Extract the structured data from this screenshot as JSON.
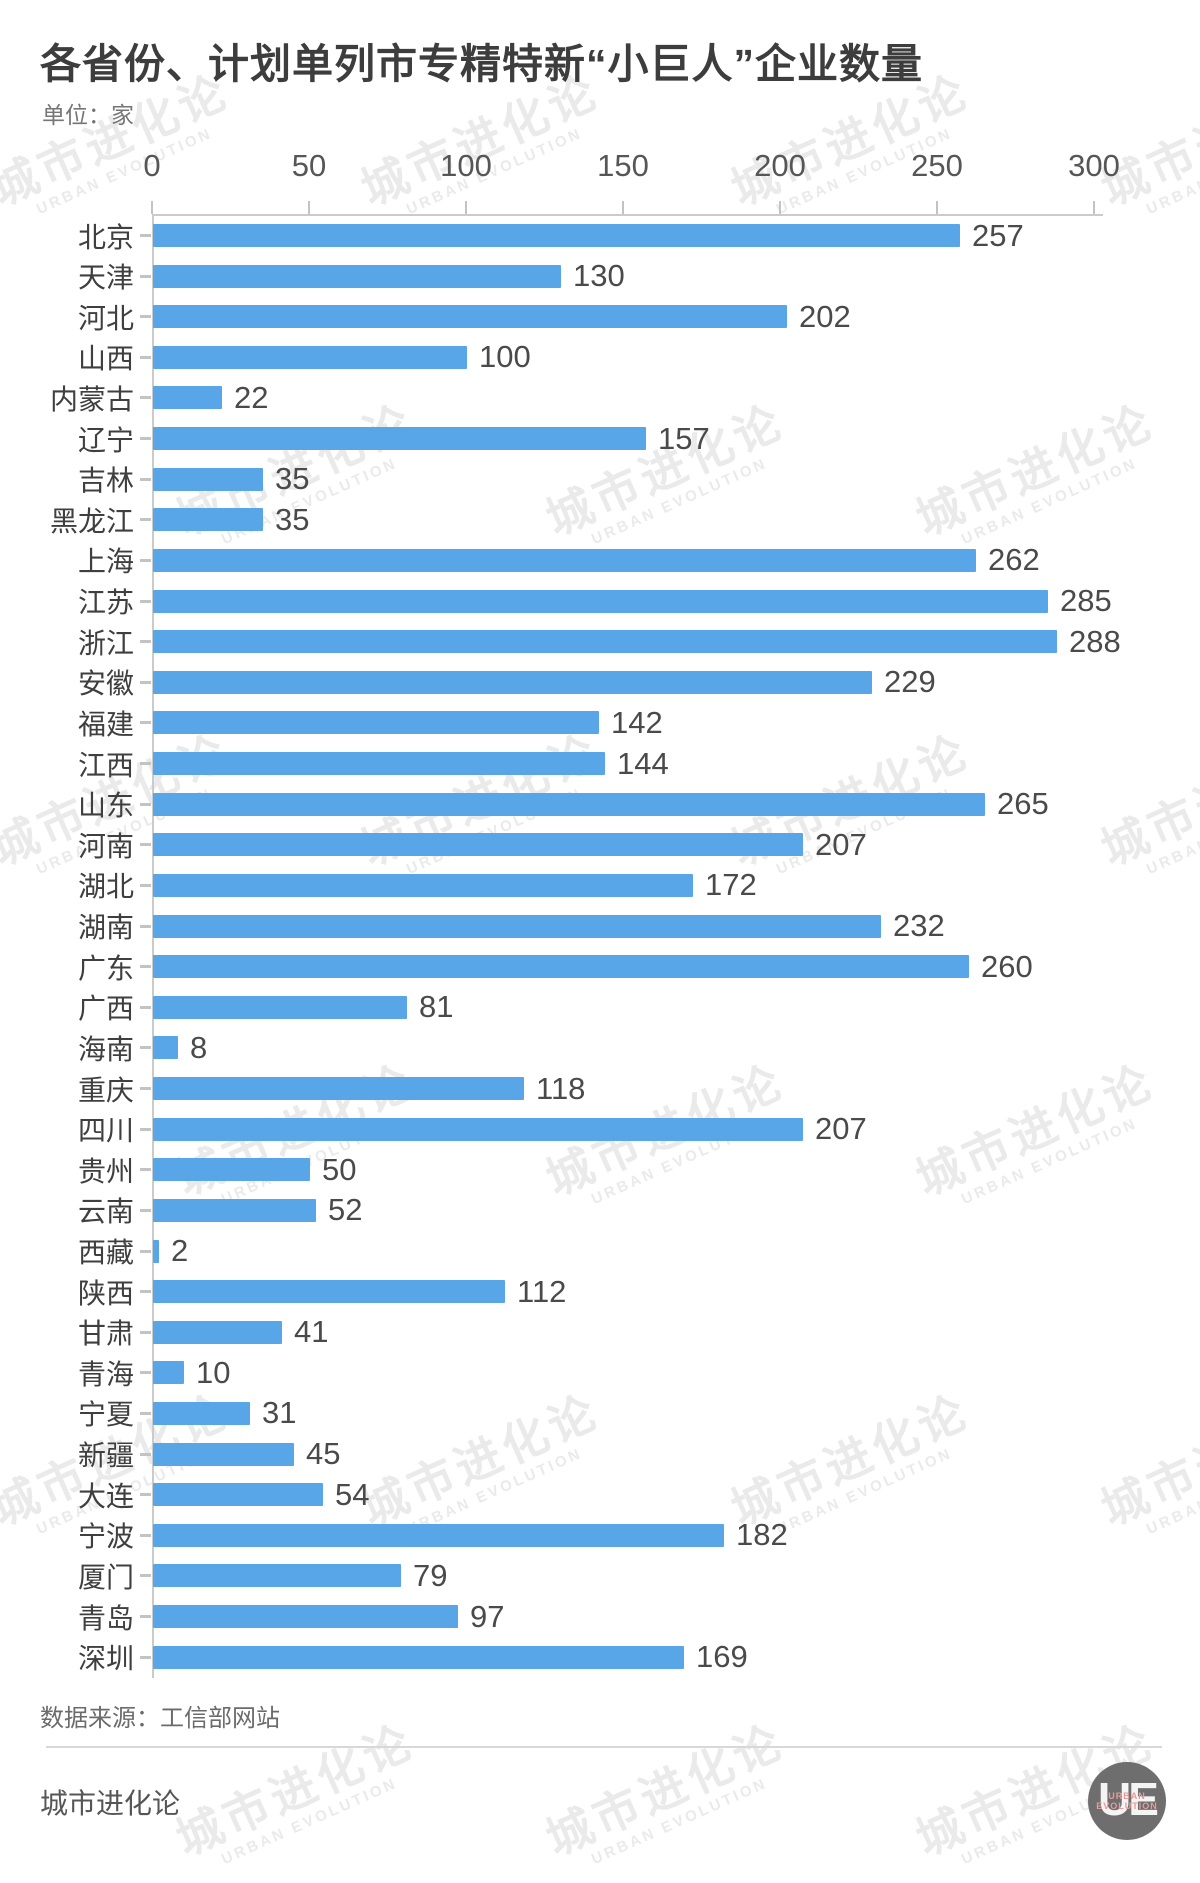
{
  "title": "各省份、计划单列市专精特新“小巨人”企业数量",
  "unit_label": "单位：家",
  "watermark": {
    "cn": "城市进化论",
    "en": "URBAN EVOLUTION"
  },
  "chart_data": {
    "type": "bar",
    "orientation": "horizontal",
    "title": "各省份、计划单列市专精特新“小巨人”企业数量",
    "unit": "家",
    "categories": [
      "北京",
      "天津",
      "河北",
      "山西",
      "内蒙古",
      "辽宁",
      "吉林",
      "黑龙江",
      "上海",
      "江苏",
      "浙江",
      "安徽",
      "福建",
      "江西",
      "山东",
      "河南",
      "湖北",
      "湖南",
      "广东",
      "广西",
      "海南",
      "重庆",
      "四川",
      "贵州",
      "云南",
      "西藏",
      "陕西",
      "甘肃",
      "青海",
      "宁夏",
      "新疆",
      "大连",
      "宁波",
      "厦门",
      "青岛",
      "深圳"
    ],
    "values": [
      257,
      130,
      202,
      100,
      22,
      157,
      35,
      35,
      262,
      285,
      288,
      229,
      142,
      144,
      265,
      207,
      172,
      232,
      260,
      81,
      8,
      118,
      207,
      50,
      52,
      2,
      112,
      41,
      10,
      31,
      45,
      54,
      182,
      79,
      97,
      169
    ],
    "x_ticks": [
      0,
      50,
      100,
      150,
      200,
      250,
      300
    ],
    "xlim": [
      0,
      300
    ],
    "grid": false,
    "legend": null,
    "bar_color": "#58a5e8",
    "axis_color": "#cbcbcb",
    "label_color": "#3f3f3f",
    "value_color": "#4a4a4a"
  },
  "footer": {
    "source": "数据来源：工信部网站",
    "brand": "城市进化论",
    "logo": {
      "initials": "UE",
      "line1": "URBAN",
      "line2": "EVOLUTION"
    }
  }
}
